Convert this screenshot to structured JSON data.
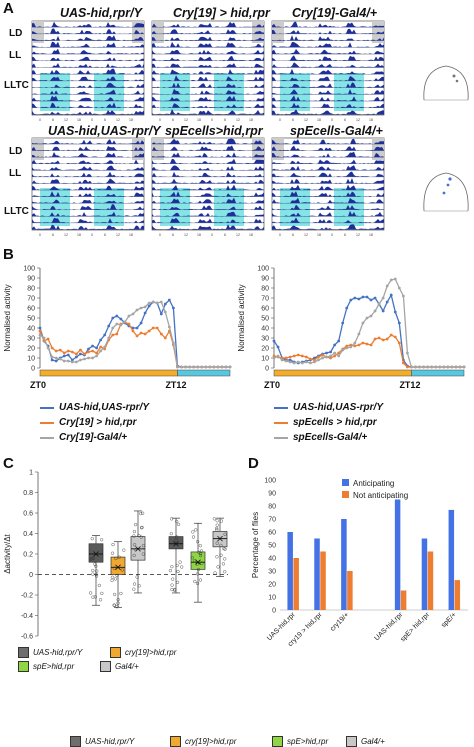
{
  "panels": {
    "a": "A",
    "b": "B",
    "c": "C",
    "d": "D"
  },
  "actograms": {
    "row_labels": {
      "ld": "LD",
      "ll": "LL",
      "lltc": "LLTC"
    },
    "top_titles": [
      "UAS-hid,rpr/Y",
      "Cry[19] > hid,rpr",
      "Cry[19]-Gal4/+"
    ],
    "bottom_titles": [
      "UAS-hid,UAS-rpr/Y",
      "spEcells>hid,rpr",
      "spEcells-Gal4/+"
    ],
    "colors": {
      "activity": "#1e2f9a",
      "shade": "#70dfe2",
      "grey": "#cccccc"
    }
  },
  "panel_b": {
    "chart_data": [
      {
        "type": "line",
        "ylabel": "Normalised activity",
        "ylim": [
          0,
          100
        ],
        "yticks": [
          0,
          10,
          20,
          30,
          40,
          50,
          60,
          70,
          80,
          90,
          100
        ],
        "x_labels": {
          "start": "ZT0",
          "mid": "ZT12"
        },
        "series": [
          {
            "name": "UAS-hid,UAS-rpr/Y",
            "color": "#4472c4",
            "values": [
              40,
              27,
              22,
              8,
              7,
              10,
              12,
              13,
              8,
              11,
              14,
              13,
              19,
              22,
              20,
              28,
              33,
              42,
              50,
              52,
              49,
              45,
              42,
              40,
              40,
              45,
              55,
              62,
              66,
              65,
              54,
              64,
              68,
              60,
              2,
              1,
              1,
              1,
              1,
              1,
              1,
              1,
              1,
              1,
              1,
              1,
              1,
              1
            ]
          },
          {
            "name": "Cry[19] > hid,rpr",
            "color": "#ed7d31",
            "values": [
              37,
              27,
              29,
              20,
              17,
              18,
              15,
              17,
              16,
              14,
              18,
              14,
              16,
              17,
              15,
              21,
              19,
              28,
              33,
              34,
              44,
              46,
              44,
              37,
              32,
              35,
              34,
              37,
              40,
              40,
              34,
              30,
              37,
              23,
              1,
              1,
              1,
              1,
              1,
              1,
              1,
              1,
              1,
              1,
              1,
              1,
              1,
              1
            ]
          },
          {
            "name": "Cry[19]-Gal4/+",
            "color": "#a5a5a5",
            "values": [
              33,
              30,
              20,
              11,
              10,
              9,
              7,
              7,
              6,
              6,
              8,
              9,
              10,
              10,
              12,
              17,
              21,
              30,
              40,
              44,
              43,
              46,
              52,
              54,
              58,
              60,
              61,
              65,
              66,
              65,
              66,
              56,
              41,
              25,
              1,
              1,
              1,
              1,
              1,
              1,
              1,
              1,
              1,
              1,
              1,
              1,
              1,
              1
            ]
          }
        ]
      },
      {
        "type": "line",
        "ylabel": "Normalised activity",
        "ylim": [
          0,
          100
        ],
        "yticks": [
          0,
          10,
          20,
          30,
          40,
          50,
          60,
          70,
          80,
          90,
          100
        ],
        "x_labels": {
          "start": "ZT0",
          "mid": "ZT12"
        },
        "series": [
          {
            "name": "UAS-hid,UAS-rpr/Y",
            "color": "#4472c4",
            "values": [
              27,
              21,
              10,
              8,
              8,
              6,
              5,
              6,
              7,
              8,
              10,
              12,
              14,
              15,
              16,
              23,
              27,
              45,
              60,
              68,
              70,
              69,
              71,
              71,
              68,
              70,
              64,
              57,
              66,
              73,
              56,
              45,
              8,
              2,
              1,
              1,
              1,
              1,
              1,
              1,
              1,
              1,
              1,
              1,
              1,
              1,
              1,
              1
            ]
          },
          {
            "name": "spEcells > hid,rpr",
            "color": "#ed7d31",
            "values": [
              12,
              11,
              10,
              10,
              11,
              12,
              13,
              12,
              11,
              9,
              8,
              11,
              13,
              11,
              10,
              12,
              15,
              19,
              22,
              23,
              22,
              23,
              25,
              24,
              23,
              29,
              30,
              28,
              29,
              33,
              31,
              25,
              5,
              1,
              1,
              1,
              1,
              1,
              1,
              1,
              1,
              1,
              1,
              1,
              1,
              1,
              1,
              1
            ]
          },
          {
            "name": "spEcells-Gal4/+",
            "color": "#a5a5a5",
            "values": [
              10,
              12,
              8,
              7,
              6,
              5,
              6,
              5,
              6,
              5,
              6,
              8,
              10,
              11,
              12,
              15,
              12,
              18,
              20,
              21,
              25,
              34,
              45,
              50,
              52,
              57,
              64,
              70,
              82,
              88,
              89,
              80,
              72,
              15,
              1,
              1,
              1,
              1,
              1,
              1,
              1,
              1,
              1,
              1,
              1,
              1,
              1,
              1
            ]
          }
        ]
      }
    ]
  },
  "panel_c": {
    "chart_data": {
      "type": "box",
      "ylabel": "Δactivity/Δt",
      "ylim": [
        -0.6,
        1.0
      ],
      "yticks": [
        "-0.6",
        "-0.4",
        "-0.2",
        "0",
        "0.2",
        "0.4",
        "0.6",
        "0.8",
        "1"
      ],
      "groups": [
        {
          "name": "UAS-hid,rpr/Y",
          "color": "#5a5a5a",
          "q1": 0.12,
          "median": 0.2,
          "q3": 0.3,
          "whisker_low": -0.3,
          "whisker_high": 0.38,
          "mean": 0.2
        },
        {
          "name": "cry[19]>hid,rpr",
          "color": "#f0a830",
          "q1": 0.0,
          "median": 0.07,
          "q3": 0.17,
          "whisker_low": -0.32,
          "whisker_high": 0.32,
          "mean": 0.07
        },
        {
          "name": "Gal4/+",
          "color": "#c8c8c8",
          "q1": 0.14,
          "median": 0.25,
          "q3": 0.37,
          "whisker_low": -0.18,
          "whisker_high": 0.62,
          "mean": 0.25
        },
        {
          "name": "UAS-hid,rpr/Y",
          "color": "#5a5a5a",
          "q1": 0.25,
          "median": 0.3,
          "q3": 0.37,
          "whisker_low": -0.18,
          "whisker_high": 0.55,
          "mean": 0.3
        },
        {
          "name": "spE>hid,rpr",
          "color": "#8fd645",
          "q1": 0.05,
          "median": 0.12,
          "q3": 0.22,
          "whisker_low": -0.27,
          "whisker_high": 0.5,
          "mean": 0.12
        },
        {
          "name": "Gal4/+",
          "color": "#c8c8c8",
          "q1": 0.27,
          "median": 0.35,
          "q3": 0.42,
          "whisker_low": -0.02,
          "whisker_high": 0.55,
          "mean": 0.35
        }
      ],
      "legend": [
        {
          "label": "UAS-hid,rpr/Y",
          "color": "#6e6e6e"
        },
        {
          "label": "cry[19]>hid,rpr",
          "color": "#f0a830"
        },
        {
          "label": "spE>hid,rpr",
          "color": "#8fd645"
        },
        {
          "label": "Gal4/+",
          "color": "#c8c8c8"
        }
      ]
    }
  },
  "panel_d": {
    "chart_data": {
      "type": "bar",
      "ylabel": "Percentage of flies",
      "ylim": [
        0,
        100
      ],
      "yticks": [
        "0",
        "10",
        "20",
        "30",
        "40",
        "50",
        "60",
        "70",
        "80",
        "90",
        "100"
      ],
      "categories": [
        "UAS-hid,rpr",
        "cry19 > hid,rpr",
        "cry19/+",
        "",
        "UAS-hid,rpr",
        "spE> hid,rpr",
        "spE/+"
      ],
      "series": [
        {
          "name": "Anticipating",
          "color": "#4472e4",
          "values": [
            60,
            55,
            70,
            null,
            85,
            55,
            77
          ]
        },
        {
          "name": "Not anticipating",
          "color": "#ed7d31",
          "values": [
            40,
            45,
            30,
            null,
            15,
            45,
            23
          ]
        }
      ]
    }
  },
  "bottom_legend": [
    {
      "label": "UAS-hid,rpr/Y",
      "color": "#6e6e6e"
    },
    {
      "label": "cry[19]>hid,rpr",
      "color": "#f0a830"
    },
    {
      "label": "spE>hid,rpr",
      "color": "#8fd645"
    },
    {
      "label": "Gal4/+",
      "color": "#c8c8c8"
    }
  ]
}
